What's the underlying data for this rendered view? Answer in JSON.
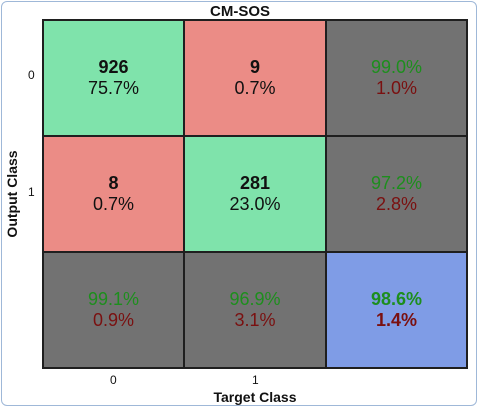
{
  "chart_data": {
    "type": "heatmap",
    "title": "CM-SOS",
    "xlabel": "Target Class",
    "ylabel": "Output Class",
    "x_ticks": [
      "0",
      "1"
    ],
    "y_ticks": [
      "0",
      "1"
    ],
    "colors": {
      "correct": "#7fe3ab",
      "incorrect": "#eb8c86",
      "summary": "#727272",
      "overall": "#7f9ce6",
      "good_text": "#1d8e1d",
      "bad_text": "#7a1010"
    },
    "cells": [
      [
        {
          "count": "926",
          "percent": "75.7%"
        },
        {
          "count": "9",
          "percent": "0.7%"
        }
      ],
      [
        {
          "count": "8",
          "percent": "0.7%"
        },
        {
          "count": "281",
          "percent": "23.0%"
        }
      ]
    ],
    "row_summary": [
      {
        "correct": "99.0%",
        "error": "1.0%"
      },
      {
        "correct": "97.2%",
        "error": "2.8%"
      }
    ],
    "col_summary": [
      {
        "correct": "99.1%",
        "error": "0.9%"
      },
      {
        "correct": "96.9%",
        "error": "3.1%"
      }
    ],
    "overall": {
      "correct": "98.6%",
      "error": "1.4%"
    }
  }
}
